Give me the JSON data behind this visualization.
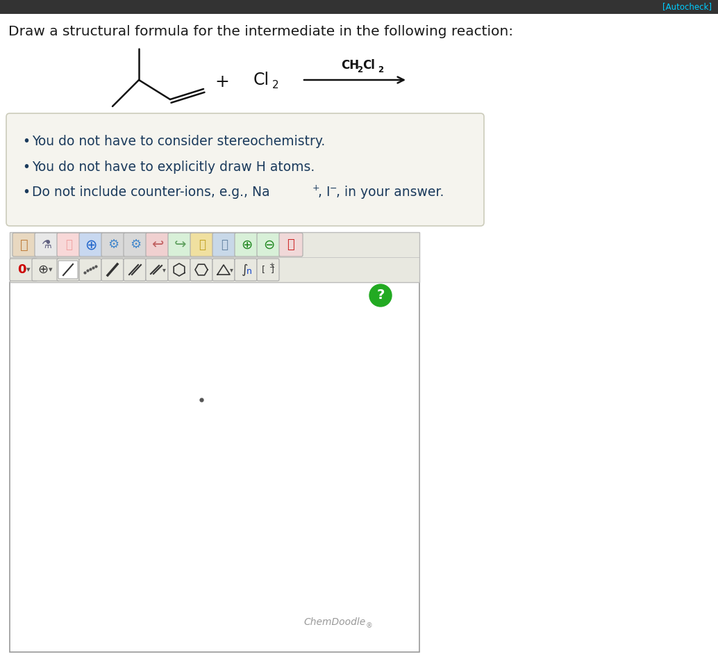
{
  "title_text": "Draw a structural formula for the intermediate in the following reaction:",
  "title_color": "#1a1a1a",
  "title_fontsize": 14.5,
  "bg_color": "#ffffff",
  "header_bg": "#333333",
  "autocheck_color": "#00ccff",
  "bullet_box_bg": "#f5f4ee",
  "bullet_box_border": "#ccccbb",
  "bullet_color": "#1a3a5c",
  "bullet_fontsize": 13.5,
  "bullet1": "You do not have to consider stereochemistry.",
  "bullet2": "You do not have to explicitly draw H atoms.",
  "chem_color": "#111111",
  "chemdoodle_color": "#999999",
  "canvas_border": "#999999",
  "canvas_bg": "#ffffff",
  "toolbar_bg": "#e8e8e0",
  "toolbar_border": "#bbbbbb",
  "green_circle_color": "#22aa22",
  "icon_bg": "#e8e8e0",
  "icon_border": "#aaaaaa"
}
